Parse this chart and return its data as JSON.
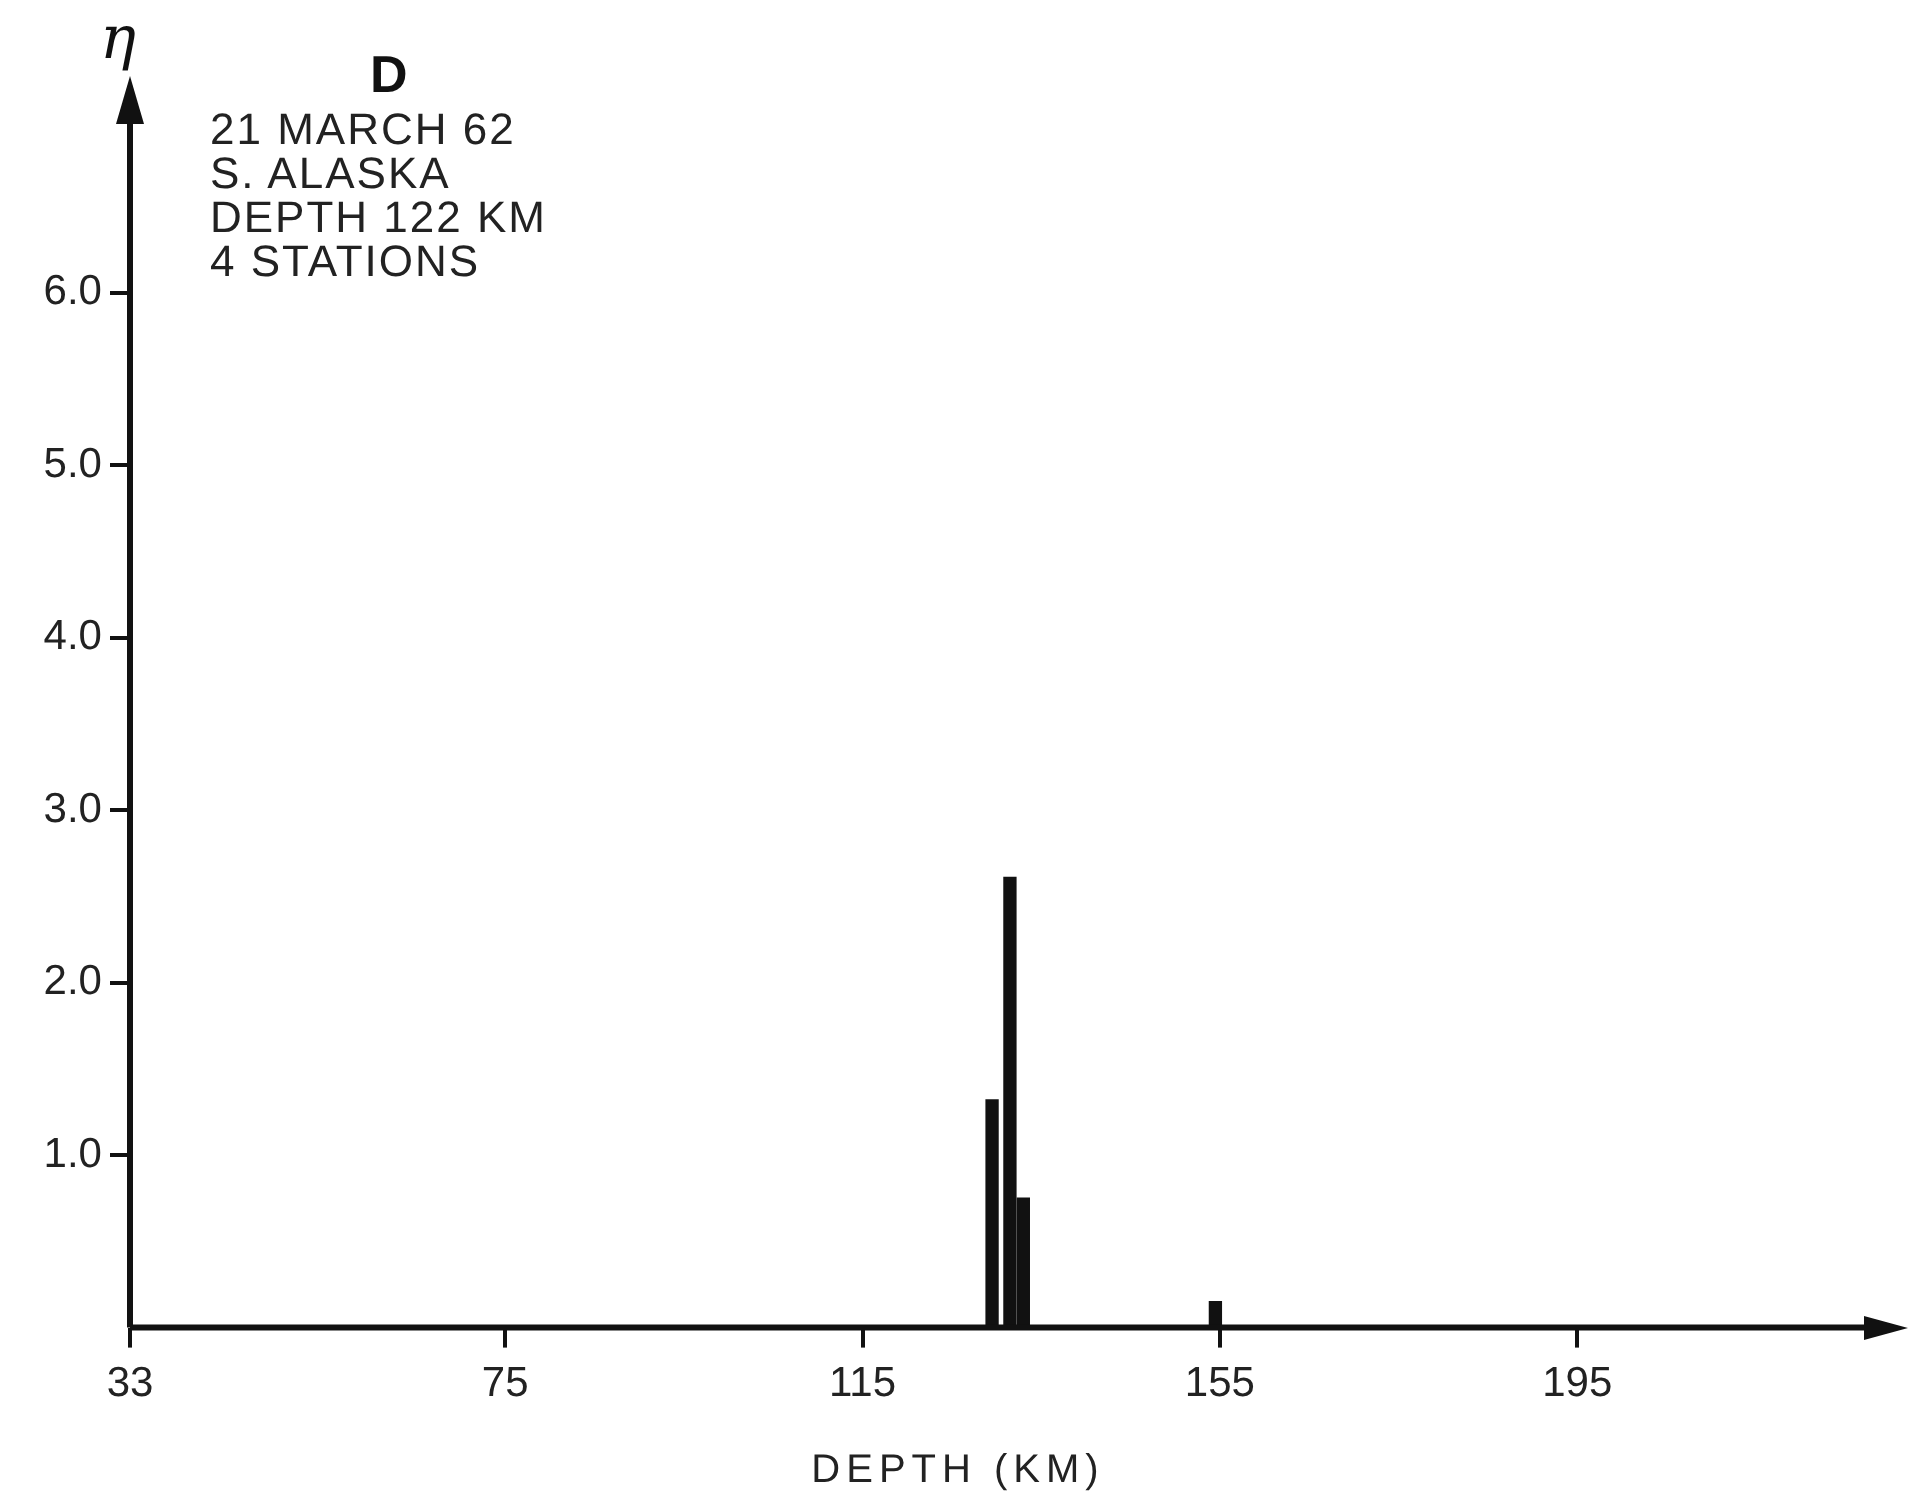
{
  "chart_data": {
    "type": "bar",
    "title": "D",
    "ylabel": "η",
    "xlabel": "DEPTH (KM)",
    "annotations": [
      "21 MARCH 62",
      "S. ALASKA",
      "DEPTH 122 KM",
      "4 STATIONS"
    ],
    "x": [
      129.5,
      131.5,
      133,
      154.5
    ],
    "values": [
      1.32,
      2.61,
      0.75,
      0.15
    ],
    "color": "#111111",
    "xlim": [
      33,
      228
    ],
    "xticks": [
      33,
      75,
      115,
      155,
      195
    ],
    "ylim": [
      0,
      7
    ],
    "yticks": [
      {
        "value": 1,
        "label": "1.0"
      },
      {
        "value": 2,
        "label": "2.0"
      },
      {
        "value": 3,
        "label": "3.0"
      },
      {
        "value": 4,
        "label": "4.0"
      },
      {
        "value": 5,
        "label": "5.0"
      },
      {
        "value": 6,
        "label": "6.0"
      }
    ],
    "grid": false,
    "legend": false
  }
}
